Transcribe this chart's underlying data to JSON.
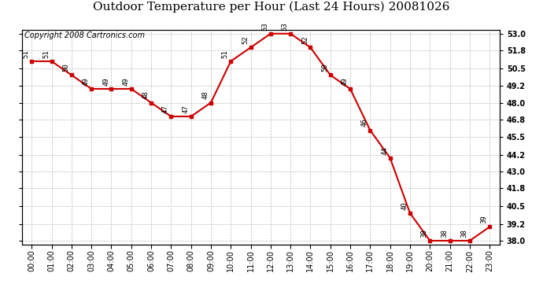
{
  "title": "Outdoor Temperature per Hour (Last 24 Hours) 20081026",
  "copyright": "Copyright 2008 Cartronics.com",
  "hours": [
    "00:00",
    "01:00",
    "02:00",
    "03:00",
    "04:00",
    "05:00",
    "06:00",
    "07:00",
    "08:00",
    "09:00",
    "10:00",
    "11:00",
    "12:00",
    "13:00",
    "14:00",
    "15:00",
    "16:00",
    "17:00",
    "18:00",
    "19:00",
    "20:00",
    "21:00",
    "22:00",
    "23:00"
  ],
  "temps": [
    51,
    51,
    50,
    49,
    49,
    49,
    48,
    47,
    47,
    48,
    51,
    52,
    53,
    53,
    52,
    50,
    49,
    46,
    44,
    40,
    38,
    38,
    38,
    39
  ],
  "ymin": 37.7,
  "ymax": 53.3,
  "right_ticks": [
    38.0,
    39.2,
    40.5,
    41.8,
    43.0,
    44.2,
    45.5,
    46.8,
    48.0,
    49.2,
    50.5,
    51.8,
    53.0
  ],
  "line_color": "#cc0000",
  "marker": "s",
  "marker_size": 3,
  "marker_color": "#cc0000",
  "bg_color": "#ffffff",
  "grid_color": "#bbbbbb",
  "title_fontsize": 11,
  "label_fontsize": 7,
  "copyright_fontsize": 7,
  "annotation_fontsize": 6.5
}
